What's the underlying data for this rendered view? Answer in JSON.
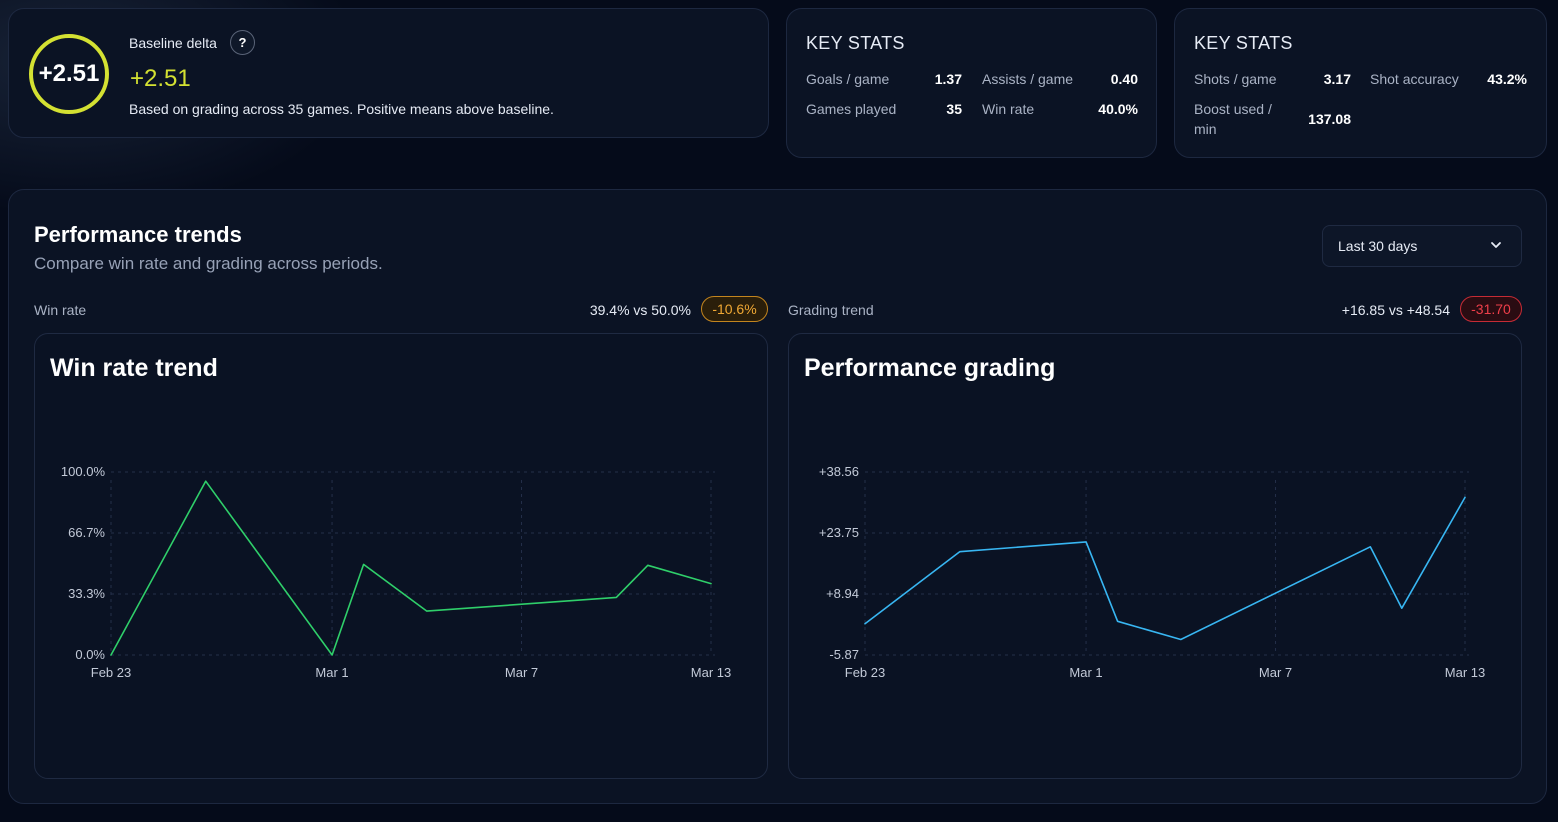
{
  "baseline": {
    "ring_value": "+2.51",
    "label": "Baseline delta",
    "help": "?",
    "value": "+2.51",
    "description": "Based on grading across 35 games. Positive means above baseline.",
    "accent_color": "#d4e132"
  },
  "key_stats_1": {
    "title": "KEY STATS",
    "items": [
      {
        "label": "Goals / game",
        "value": "1.37"
      },
      {
        "label": "Assists / game",
        "value": "0.40"
      },
      {
        "label": "Games played",
        "value": "35"
      },
      {
        "label": "Win rate",
        "value": "40.0%"
      }
    ]
  },
  "key_stats_2": {
    "title": "KEY STATS",
    "items": [
      {
        "label": "Shots / game",
        "value": "3.17"
      },
      {
        "label": "Shot accuracy",
        "value": "43.2%"
      },
      {
        "label": "Boost used /\nmin",
        "value": "137.08"
      }
    ]
  },
  "performance": {
    "title": "Performance trends",
    "subtitle": "Compare win rate and grading across periods.",
    "range_select": {
      "selected": "Last 30 days",
      "icon": "chevron-down-icon"
    },
    "win_rate_row": {
      "label": "Win rate",
      "compare": "39.4% vs 50.0%",
      "delta": "-10.6%",
      "delta_color": "#f0a834"
    },
    "grading_row": {
      "label": "Grading trend",
      "compare": "+16.85 vs +48.54",
      "delta": "-31.70",
      "delta_color": "#ef3f4a"
    }
  },
  "chart_data": [
    {
      "type": "line",
      "title": "Win rate trend",
      "x_ticks": [
        "Feb 23",
        "Mar 1",
        "Mar 7",
        "Mar 13"
      ],
      "y_ticks": [
        "100.0%",
        "66.7%",
        "33.3%",
        "0.0%"
      ],
      "ylim": [
        0,
        100
      ],
      "xlim": [
        "2024-02-23",
        "2024-03-13"
      ],
      "grid": true,
      "color": "#2fcf6a",
      "series": [
        {
          "x": [
            "2024-02-23",
            "2024-02-26",
            "2024-03-01",
            "2024-03-02",
            "2024-03-04",
            "2024-03-10",
            "2024-03-11",
            "2024-03-13"
          ],
          "y": [
            0,
            95,
            0,
            49.5,
            24,
            31.5,
            49,
            39
          ]
        }
      ]
    },
    {
      "type": "line",
      "title": "Performance grading",
      "x_ticks": [
        "Feb 23",
        "Mar 1",
        "Mar 7",
        "Mar 13"
      ],
      "y_ticks": [
        "+38.56",
        "+23.75",
        "+8.94",
        "-5.87"
      ],
      "ylim": [
        -5.87,
        38.56
      ],
      "xlim": [
        "2024-02-23",
        "2024-03-13"
      ],
      "grid": true,
      "color": "#38b6f2",
      "series": [
        {
          "x": [
            "2024-02-23",
            "2024-02-26",
            "2024-03-01",
            "2024-03-02",
            "2024-03-04",
            "2024-03-10",
            "2024-03-11",
            "2024-03-13"
          ],
          "y": [
            1.7,
            19.2,
            21.6,
            2.3,
            -2.1,
            20.4,
            5.5,
            32.4
          ]
        }
      ]
    }
  ]
}
